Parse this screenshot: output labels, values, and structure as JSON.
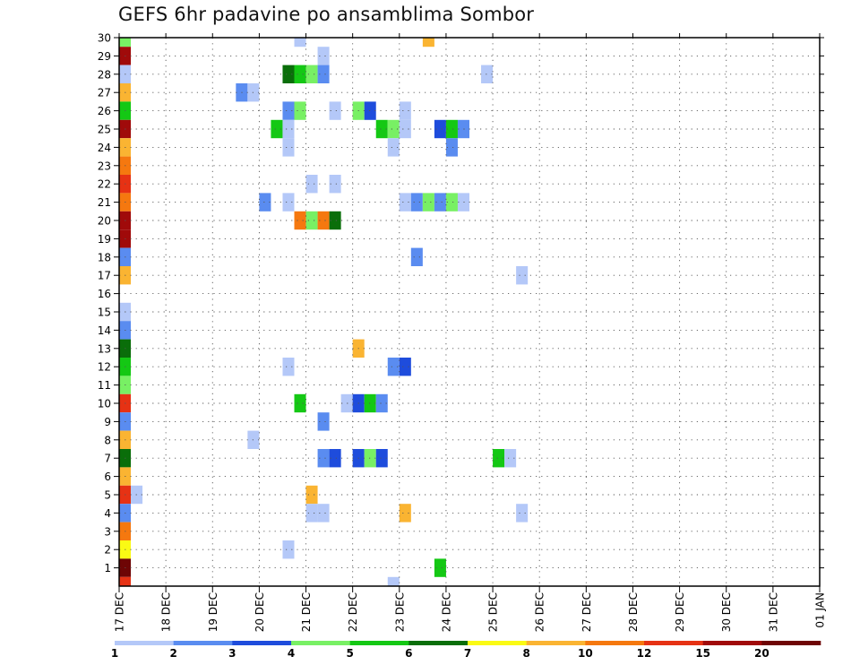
{
  "title": "GEFS 6hr padavine po ansamblima Sombor",
  "chart_data": {
    "type": "heatmap",
    "title": "GEFS 6hr padavine po ansamblima Sombor",
    "xlabel": "",
    "ylabel": "",
    "x_tick_labels": [
      "17 DEC",
      "18 DEC",
      "19 DEC",
      "20 DEC",
      "21 DEC",
      "22 DEC",
      "23 DEC",
      "24 DEC",
      "25 DEC",
      "26 DEC",
      "27 DEC",
      "28 DEC",
      "29 DEC",
      "30 DEC",
      "31 DEC",
      "01 JAN"
    ],
    "x_range_days": [
      0,
      15
    ],
    "y_tick_labels": [
      1,
      2,
      3,
      4,
      5,
      6,
      7,
      8,
      9,
      10,
      11,
      12,
      13,
      14,
      15,
      16,
      17,
      18,
      19,
      20,
      21,
      22,
      23,
      24,
      25,
      26,
      27,
      28,
      29,
      30
    ],
    "y_range": [
      0,
      30
    ],
    "grid": true,
    "time_step_hours": 6,
    "colorbar": {
      "labels": [
        "1",
        "2",
        "3",
        "4",
        "5",
        "6",
        "7",
        "8",
        "10",
        "12",
        "15",
        "20"
      ],
      "bounds": [
        1,
        2,
        3,
        4,
        5,
        6,
        7,
        8,
        10,
        12,
        15,
        20
      ],
      "colors": [
        "#b4c8f8",
        "#5a8cf0",
        "#1e4cdc",
        "#78f064",
        "#14c814",
        "#0a6e0a",
        "#fafa14",
        "#fab432",
        "#f5780f",
        "#e63214",
        "#a00a0a",
        "#6e0505"
      ]
    },
    "cells": [
      {
        "member": 30,
        "t": 0,
        "v": 4.5
      },
      {
        "member": 30,
        "t": 15,
        "v": 1.5
      },
      {
        "member": 30,
        "t": 26,
        "v": 8.5
      },
      {
        "member": 29,
        "t": 0,
        "v": 16
      },
      {
        "member": 29,
        "t": 17,
        "v": 1.5
      },
      {
        "member": 28,
        "t": 0,
        "v": 1.5
      },
      {
        "member": 28,
        "t": 14,
        "v": 6.5
      },
      {
        "member": 28,
        "t": 15,
        "v": 5.5
      },
      {
        "member": 28,
        "t": 16,
        "v": 4.5
      },
      {
        "member": 28,
        "t": 17,
        "v": 2.5
      },
      {
        "member": 28,
        "t": 31,
        "v": 1.5
      },
      {
        "member": 27,
        "t": 0,
        "v": 8.5
      },
      {
        "member": 27,
        "t": 10,
        "v": 2.5
      },
      {
        "member": 27,
        "t": 11,
        "v": 1.5
      },
      {
        "member": 26,
        "t": 0,
        "v": 5.5
      },
      {
        "member": 26,
        "t": 14,
        "v": 2.5
      },
      {
        "member": 26,
        "t": 15,
        "v": 4.5
      },
      {
        "member": 26,
        "t": 18,
        "v": 1.5
      },
      {
        "member": 26,
        "t": 20,
        "v": 4.5
      },
      {
        "member": 26,
        "t": 21,
        "v": 3.5
      },
      {
        "member": 26,
        "t": 24,
        "v": 1.5
      },
      {
        "member": 25,
        "t": 0,
        "v": 16
      },
      {
        "member": 25,
        "t": 13,
        "v": 5.5
      },
      {
        "member": 25,
        "t": 14,
        "v": 1.5
      },
      {
        "member": 25,
        "t": 22,
        "v": 5.5
      },
      {
        "member": 25,
        "t": 23,
        "v": 4.5
      },
      {
        "member": 25,
        "t": 24,
        "v": 1.5
      },
      {
        "member": 25,
        "t": 27,
        "v": 3.5
      },
      {
        "member": 25,
        "t": 28,
        "v": 5.5
      },
      {
        "member": 25,
        "t": 29,
        "v": 2.5
      },
      {
        "member": 24,
        "t": 0,
        "v": 8.5
      },
      {
        "member": 24,
        "t": 14,
        "v": 1.5
      },
      {
        "member": 24,
        "t": 23,
        "v": 1.5
      },
      {
        "member": 24,
        "t": 28,
        "v": 2.5
      },
      {
        "member": 23,
        "t": 0,
        "v": 11
      },
      {
        "member": 22,
        "t": 0,
        "v": 13
      },
      {
        "member": 22,
        "t": 16,
        "v": 1.5
      },
      {
        "member": 22,
        "t": 18,
        "v": 1.5
      },
      {
        "member": 21,
        "t": 0,
        "v": 11
      },
      {
        "member": 21,
        "t": 12,
        "v": 2.5
      },
      {
        "member": 21,
        "t": 14,
        "v": 1.5
      },
      {
        "member": 21,
        "t": 24,
        "v": 1.5
      },
      {
        "member": 21,
        "t": 25,
        "v": 2.5
      },
      {
        "member": 21,
        "t": 26,
        "v": 4.5
      },
      {
        "member": 21,
        "t": 27,
        "v": 2.5
      },
      {
        "member": 21,
        "t": 28,
        "v": 4.5
      },
      {
        "member": 21,
        "t": 29,
        "v": 1.5
      },
      {
        "member": 20,
        "t": 0,
        "v": 16
      },
      {
        "member": 20,
        "t": 15,
        "v": 11
      },
      {
        "member": 20,
        "t": 16,
        "v": 4.5
      },
      {
        "member": 20,
        "t": 17,
        "v": 11
      },
      {
        "member": 20,
        "t": 18,
        "v": 6.5
      },
      {
        "member": 19,
        "t": 0,
        "v": 16
      },
      {
        "member": 18,
        "t": 0,
        "v": 2.5
      },
      {
        "member": 18,
        "t": 25,
        "v": 2.5
      },
      {
        "member": 17,
        "t": 0,
        "v": 8.5
      },
      {
        "member": 17,
        "t": 34,
        "v": 1.5
      },
      {
        "member": 15,
        "t": 0,
        "v": 1.5
      },
      {
        "member": 14,
        "t": 0,
        "v": 2.5
      },
      {
        "member": 13,
        "t": 0,
        "v": 6.5
      },
      {
        "member": 13,
        "t": 20,
        "v": 8.5
      },
      {
        "member": 12,
        "t": 0,
        "v": 5.5
      },
      {
        "member": 12,
        "t": 14,
        "v": 1.5
      },
      {
        "member": 12,
        "t": 23,
        "v": 2.5
      },
      {
        "member": 12,
        "t": 24,
        "v": 3.5
      },
      {
        "member": 11,
        "t": 0,
        "v": 4.5
      },
      {
        "member": 10,
        "t": 0,
        "v": 13
      },
      {
        "member": 10,
        "t": 15,
        "v": 5.5
      },
      {
        "member": 10,
        "t": 19,
        "v": 1.5
      },
      {
        "member": 10,
        "t": 20,
        "v": 3.5
      },
      {
        "member": 10,
        "t": 21,
        "v": 5.5
      },
      {
        "member": 10,
        "t": 22,
        "v": 2.5
      },
      {
        "member": 9,
        "t": 0,
        "v": 2.5
      },
      {
        "member": 9,
        "t": 17,
        "v": 2.5
      },
      {
        "member": 8,
        "t": 0,
        "v": 8.5
      },
      {
        "member": 8,
        "t": 11,
        "v": 1.5
      },
      {
        "member": 7,
        "t": 0,
        "v": 6.5
      },
      {
        "member": 7,
        "t": 17,
        "v": 2.5
      },
      {
        "member": 7,
        "t": 18,
        "v": 3.5
      },
      {
        "member": 7,
        "t": 20,
        "v": 3.5
      },
      {
        "member": 7,
        "t": 21,
        "v": 4.5
      },
      {
        "member": 7,
        "t": 22,
        "v": 3.5
      },
      {
        "member": 7,
        "t": 32,
        "v": 5.5
      },
      {
        "member": 7,
        "t": 33,
        "v": 1.5
      },
      {
        "member": 6,
        "t": 0,
        "v": 8.5
      },
      {
        "member": 5,
        "t": 0,
        "v": 13
      },
      {
        "member": 5,
        "t": 1,
        "v": 1.5
      },
      {
        "member": 5,
        "t": 16,
        "v": 8.5
      },
      {
        "member": 4,
        "t": 0,
        "v": 2.5
      },
      {
        "member": 4,
        "t": 16,
        "v": 1.5
      },
      {
        "member": 4,
        "t": 17,
        "v": 1.5
      },
      {
        "member": 4,
        "t": 24,
        "v": 8.5
      },
      {
        "member": 4,
        "t": 34,
        "v": 1.5
      },
      {
        "member": 3,
        "t": 0,
        "v": 11
      },
      {
        "member": 2,
        "t": 0,
        "v": 7.5
      },
      {
        "member": 2,
        "t": 14,
        "v": 1.5
      },
      {
        "member": 1,
        "t": 0,
        "v": 25
      },
      {
        "member": 1,
        "t": 27,
        "v": 5.5
      },
      {
        "member": 0,
        "t": 0,
        "v": 13
      },
      {
        "member": 0,
        "t": 23,
        "v": 1.5
      }
    ]
  }
}
